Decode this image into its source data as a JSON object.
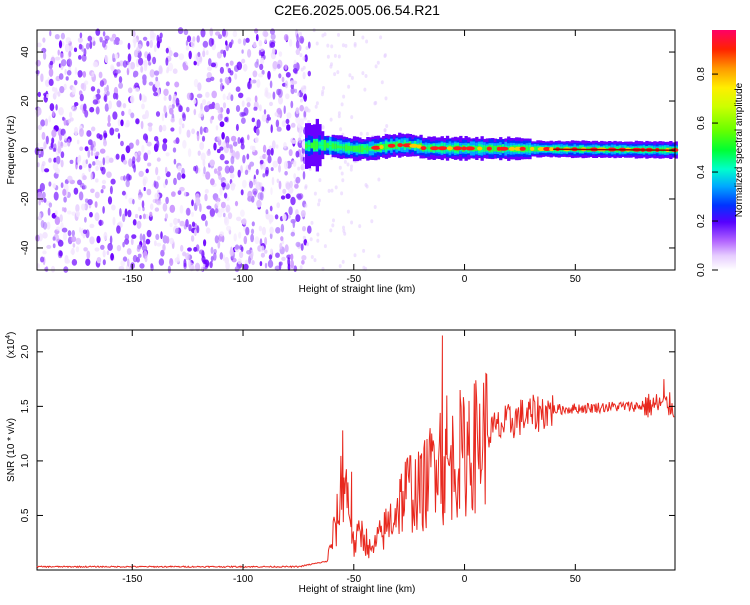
{
  "title": "C2E6.2025.005.06.54.R21",
  "colorbar": {
    "label": "Normalized spectral amplitude",
    "ticks": [
      "0.0",
      "0.2",
      "0.4",
      "0.6",
      "0.8"
    ],
    "tick_values": [
      0,
      0.2,
      0.4,
      0.6,
      0.8
    ]
  },
  "chart_data": [
    {
      "type": "heatmap",
      "xlabel": "Height of straight line (km)",
      "ylabel": "Frequency (Hz)",
      "xlim": [
        -193,
        95
      ],
      "ylim": [
        -49,
        49
      ],
      "x_ticks": [
        -150,
        -100,
        -50,
        0,
        50
      ],
      "y_ticks": [
        -40,
        -20,
        0,
        20,
        40
      ],
      "x_tick_labels": [
        "-150",
        "-100",
        "-50",
        "0",
        "50"
      ],
      "y_tick_labels": [
        "-40",
        "-20",
        "0",
        "20",
        "40"
      ],
      "regions": [
        {
          "description_x": [
            -193,
            -68
          ],
          "frequency_band": [
            -49,
            49
          ],
          "amplitude": "0.0-0.25 noise"
        },
        {
          "description_x": [
            -72,
            95
          ],
          "frequency_band": [
            -3,
            4
          ],
          "amplitude": "0.3-1.0 signal, centred near 0 Hz"
        }
      ],
      "colorscale": [
        "#ffffff",
        "#d9b3ff",
        "#9933ff",
        "#3300ff",
        "#0066ff",
        "#00ccff",
        "#00ff99",
        "#66ff00",
        "#ffff00",
        "#ff9900",
        "#ff0000",
        "#ff0066"
      ]
    },
    {
      "type": "line",
      "xlabel": "Height of straight line (km)",
      "ylabel": "SNR (10 * v/v)",
      "multiplier_label": "(x10",
      "multiplier_exp": "4",
      "xlim": [
        -193,
        95
      ],
      "ylim": [
        0,
        2.2
      ],
      "x_ticks": [
        -150,
        -100,
        -50,
        0,
        50
      ],
      "y_ticks": [
        0.5,
        1.0,
        1.5,
        2.0
      ],
      "x_tick_labels": [
        "-150",
        "-100",
        "-50",
        "0",
        "50"
      ],
      "y_tick_labels": [
        "0.5",
        "1.0",
        "1.5",
        "2.0"
      ],
      "color": "#e8281e",
      "series_envelope": {
        "x": [
          -193,
          -75,
          -62,
          -57,
          -55,
          -52,
          -50,
          -47,
          -45,
          -42,
          -40,
          -35,
          -30,
          -25,
          -20,
          -15,
          -12,
          -10,
          -5,
          0,
          5,
          10,
          15,
          20,
          25,
          30,
          35,
          40,
          50,
          60,
          70,
          80,
          90,
          95
        ],
        "y": [
          0.03,
          0.03,
          0.08,
          0.5,
          0.9,
          0.6,
          0.2,
          0.35,
          0.3,
          0.15,
          0.25,
          0.4,
          0.6,
          0.75,
          0.7,
          0.9,
          1.3,
          0.85,
          1.0,
          1.05,
          1.15,
          1.25,
          1.3,
          1.35,
          1.4,
          1.42,
          1.45,
          1.47,
          1.48,
          1.49,
          1.5,
          1.5,
          1.52,
          1.5
        ],
        "spikes": [
          [
            -55,
            1.28
          ],
          [
            -51,
            0.9
          ],
          [
            -20,
            1.05
          ],
          [
            -10,
            2.15
          ],
          [
            -8,
            1.6
          ],
          [
            -2,
            1.65
          ],
          [
            2,
            1.55
          ],
          [
            90,
            1.75
          ]
        ]
      }
    }
  ]
}
